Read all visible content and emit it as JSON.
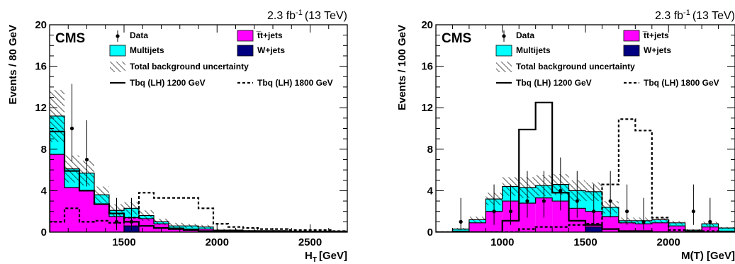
{
  "chart_data": [
    {
      "type": "bar",
      "stacked": true,
      "label": "CMS",
      "luminosity": "2.3 fb",
      "lumi_exponent": "-1",
      "energy": "(13 TeV)",
      "xlabel": "H",
      "xlabel_sub": "T",
      "xlabel_unit": "[GeV]",
      "ylabel": "Events / 80 GeV",
      "xlim": [
        1100,
        2700
      ],
      "ylim": [
        0,
        20
      ],
      "xticks": [
        1500,
        2000,
        2500
      ],
      "yticks": [
        0,
        4,
        8,
        12,
        16,
        20
      ],
      "legend_position": "top",
      "bin_edges": [
        1100,
        1180,
        1260,
        1340,
        1420,
        1500,
        1580,
        1660,
        1740,
        1820,
        1900,
        1980,
        2060,
        2140,
        2220,
        2300,
        2380,
        2460,
        2540,
        2620,
        2700
      ],
      "series": [
        {
          "name": "W+jets",
          "kind": "stack",
          "color": "#000080",
          "values": [
            0,
            0,
            0,
            0,
            0,
            0.6,
            0,
            0,
            0,
            0,
            0,
            0,
            0,
            0,
            0,
            0,
            0,
            0,
            0,
            0
          ]
        },
        {
          "name": "t̅t+jets",
          "kind": "stack",
          "color": "#ff00ff",
          "values": [
            7.5,
            4.3,
            4.0,
            2.7,
            1.5,
            0.8,
            1.3,
            0.8,
            0.4,
            0.3,
            0.3,
            0.15,
            0.15,
            0.1,
            0.1,
            0.1,
            0.05,
            0.05,
            0.05,
            0.05
          ]
        },
        {
          "name": "Multijets",
          "kind": "stack",
          "color": "#00ffff",
          "values": [
            3.7,
            1.8,
            1.7,
            0.9,
            0.6,
            0.9,
            0.3,
            0.2,
            0.2,
            0.3,
            0.2,
            0.05,
            0.05,
            0.05,
            0.05,
            0.05,
            0.05,
            0.05,
            0.05,
            0.05
          ]
        },
        {
          "name": "Tbq (LH) 1200 GeV",
          "kind": "solid-line",
          "color": "#000000",
          "values": [
            9.7,
            5.9,
            4.0,
            2.7,
            1.8,
            1.0,
            0.6,
            0.4,
            0.3,
            0.2,
            0.1,
            0.1,
            0.05,
            0.05,
            0.05,
            0,
            0,
            0,
            0,
            0
          ]
        },
        {
          "name": "Tbq (LH) 1800 GeV",
          "kind": "dashed-line",
          "color": "#000000",
          "values": [
            1.0,
            2.3,
            1.0,
            1.1,
            0.9,
            1.4,
            3.8,
            3.3,
            3.3,
            3.3,
            2.3,
            0.8,
            0.5,
            0.4,
            0.3,
            0.3,
            0.2,
            0.2,
            0.2,
            0.1
          ]
        },
        {
          "name": "Total background uncertainty",
          "kind": "hatch",
          "values": [
            2.5,
            1.3,
            1.2,
            0.8,
            0.6,
            0.6,
            0.5,
            0.3,
            0.3,
            0.2,
            0.2,
            0.1,
            0.1,
            0.05,
            0.05,
            0.05,
            0.05,
            0.05,
            0.05,
            0.05
          ]
        }
      ],
      "data_points": {
        "name": "Data",
        "x": [
          1220,
          1300,
          1460,
          1540
        ],
        "y": [
          10,
          7,
          1,
          1
        ],
        "err_low": [
          3.2,
          2.6,
          0.8,
          0.8
        ],
        "err_high": [
          4.3,
          3.8,
          2.3,
          2.3
        ]
      },
      "legend": [
        {
          "ref": 0,
          "text": "Data",
          "marker": "point"
        },
        {
          "ref": 1,
          "text": "t̅t+jets",
          "marker": "box",
          "color": "#ff00ff"
        },
        {
          "ref": 2,
          "text": "Multijets",
          "marker": "box",
          "color": "#00ffff"
        },
        {
          "ref": 3,
          "text": "W+jets",
          "marker": "box",
          "color": "#000080"
        },
        {
          "ref": 4,
          "text": "Total background uncertainty",
          "marker": "hatch"
        },
        {
          "ref": 5,
          "text": "Tbq (LH) 1200 GeV",
          "marker": "solid-line"
        },
        {
          "ref": 6,
          "text": "Tbq (LH) 1800 GeV",
          "marker": "dashed-line"
        }
      ]
    },
    {
      "type": "bar",
      "stacked": true,
      "label": "CMS",
      "luminosity": "2.3 fb",
      "lumi_exponent": "-1",
      "energy": "(13 TeV)",
      "xlabel": "M(T) [GeV]",
      "xlabel_sub": "",
      "xlabel_unit": "",
      "ylabel": "Events / 100 GeV",
      "xlim": [
        600,
        2400
      ],
      "ylim": [
        0,
        20
      ],
      "xticks": [
        1000,
        1500,
        2000
      ],
      "yticks": [
        0,
        4,
        8,
        12,
        16,
        20
      ],
      "legend_position": "top",
      "bin_edges": [
        600,
        700,
        800,
        900,
        1000,
        1100,
        1200,
        1300,
        1400,
        1500,
        1600,
        1700,
        1800,
        1900,
        2000,
        2100,
        2200,
        2300,
        2400
      ],
      "series": [
        {
          "name": "W+jets",
          "kind": "stack",
          "color": "#000080",
          "values": [
            0,
            0,
            0,
            0,
            0,
            0,
            0,
            0,
            0,
            0.5,
            0,
            0,
            0,
            0,
            0,
            0,
            0,
            0
          ]
        },
        {
          "name": "t̅t+jets",
          "kind": "stack",
          "color": "#ff00ff",
          "values": [
            0,
            0.1,
            0.9,
            2.0,
            3.0,
            2.8,
            3.3,
            3.0,
            2.3,
            1.5,
            1.5,
            0.9,
            0.8,
            0.9,
            0.6,
            0.1,
            0.5,
            0.1
          ]
        },
        {
          "name": "Multijets",
          "kind": "stack",
          "color": "#00ffff",
          "values": [
            0,
            0.2,
            0.3,
            1.2,
            1.4,
            1.5,
            1.2,
            1.6,
            1.7,
            1.9,
            0.9,
            0.2,
            0.3,
            0.3,
            0.3,
            0.1,
            0.3,
            0.3
          ]
        },
        {
          "name": "Tbq (LH) 1200 GeV",
          "kind": "solid-line",
          "color": "#000000",
          "values": [
            0,
            0,
            0,
            0,
            1.1,
            9.9,
            12.5,
            3.8,
            1.1,
            0.7,
            0.3,
            0.1,
            0.1,
            0,
            0,
            0,
            0,
            0
          ]
        },
        {
          "name": "Tbq (LH) 1800 GeV",
          "kind": "dashed-line",
          "color": "#000000",
          "values": [
            0,
            0,
            0,
            0,
            0,
            0.3,
            0.5,
            0.5,
            0.7,
            0.8,
            4.6,
            10.9,
            9.8,
            1.4,
            0.2,
            0.1,
            0.1,
            0
          ]
        },
        {
          "name": "Total background uncertainty",
          "kind": "hatch",
          "values": [
            0,
            0.1,
            0.3,
            0.6,
            0.9,
            1.0,
            1.0,
            1.0,
            1.0,
            0.9,
            0.6,
            0.3,
            0.3,
            0.3,
            0.2,
            0.1,
            0.2,
            0.1
          ]
        }
      ],
      "data_points": {
        "name": "Data",
        "x": [
          750,
          950,
          1050,
          1150,
          1250,
          1350,
          1450,
          1550,
          1650,
          1750,
          1850,
          2150,
          2250
        ],
        "y": [
          1,
          2,
          2,
          3,
          3,
          4,
          3,
          2,
          3,
          2,
          1,
          2,
          1
        ],
        "err_low": [
          0.8,
          1.3,
          1.3,
          1.6,
          1.6,
          1.9,
          1.6,
          1.3,
          1.6,
          1.3,
          0.8,
          1.3,
          0.8
        ],
        "err_high": [
          2.3,
          2.6,
          2.6,
          2.9,
          2.9,
          3.2,
          2.9,
          2.6,
          2.9,
          2.6,
          2.3,
          2.6,
          2.3
        ]
      },
      "legend": [
        {
          "ref": 0,
          "text": "Data",
          "marker": "point"
        },
        {
          "ref": 1,
          "text": "t̅t+jets",
          "marker": "box",
          "color": "#ff00ff"
        },
        {
          "ref": 2,
          "text": "Multijets",
          "marker": "box",
          "color": "#00ffff"
        },
        {
          "ref": 3,
          "text": "W+jets",
          "marker": "box",
          "color": "#000080"
        },
        {
          "ref": 4,
          "text": "Total background uncertainty",
          "marker": "hatch"
        },
        {
          "ref": 5,
          "text": "Tbq (LH) 1200 GeV",
          "marker": "solid-line"
        },
        {
          "ref": 6,
          "text": "Tbq (LH) 1800 GeV",
          "marker": "dashed-line"
        }
      ]
    }
  ]
}
